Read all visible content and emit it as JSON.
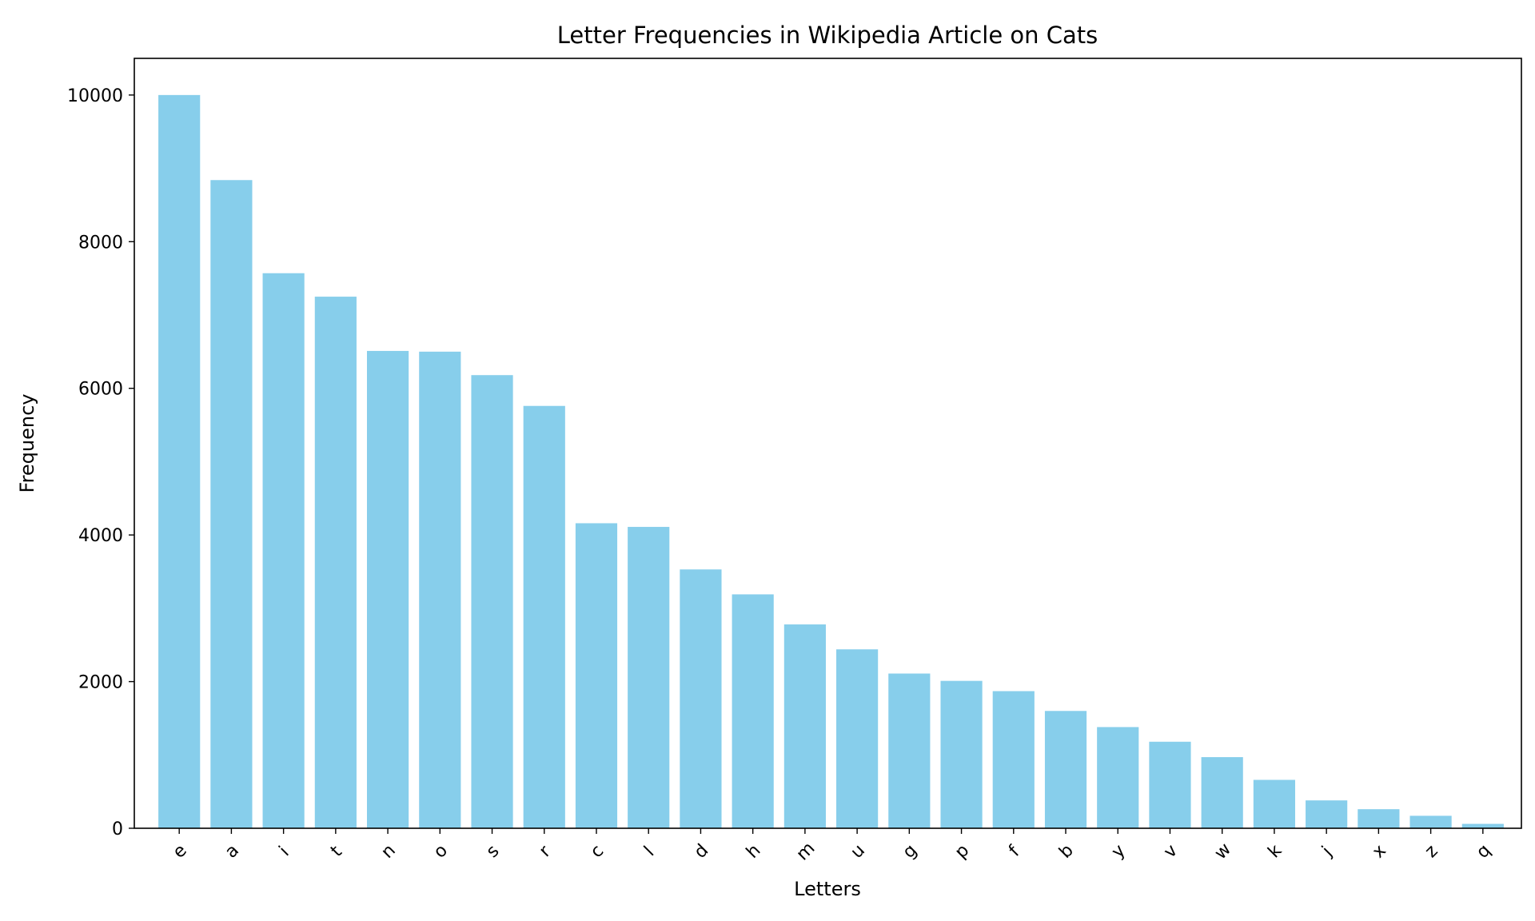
{
  "chart_data": {
    "type": "bar",
    "title": "Letter Frequencies in Wikipedia Article on Cats",
    "xlabel": "Letters",
    "ylabel": "Frequency",
    "categories": [
      "e",
      "a",
      "i",
      "t",
      "n",
      "o",
      "s",
      "r",
      "c",
      "l",
      "d",
      "h",
      "m",
      "u",
      "g",
      "p",
      "f",
      "b",
      "y",
      "v",
      "w",
      "k",
      "j",
      "x",
      "z",
      "q"
    ],
    "values": [
      10000,
      8840,
      7570,
      7250,
      6510,
      6500,
      6180,
      5760,
      4160,
      4110,
      3530,
      3190,
      2780,
      2440,
      2110,
      2010,
      1870,
      1600,
      1380,
      1180,
      970,
      660,
      380,
      260,
      170,
      60
    ],
    "ylim": [
      0,
      10500
    ],
    "yticks": [
      0,
      2000,
      4000,
      6000,
      8000,
      10000
    ],
    "grid": false,
    "legend": "none",
    "bar_color": "#87CEEB"
  }
}
